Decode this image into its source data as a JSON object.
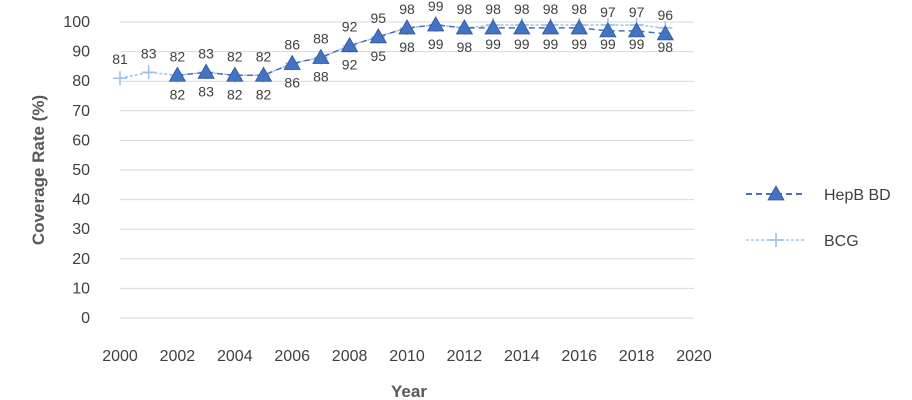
{
  "chart_data": {
    "type": "line",
    "xlabel": "Year",
    "ylabel": "Coverage Rate (%)",
    "xlim": [
      2000,
      2020
    ],
    "ylim": [
      0,
      100
    ],
    "x_ticks": [
      "2000",
      "2002",
      "2004",
      "2006",
      "2008",
      "2010",
      "2012",
      "2014",
      "2016",
      "2018",
      "2020"
    ],
    "y_ticks": [
      "0",
      "10",
      "20",
      "30",
      "40",
      "50",
      "60",
      "70",
      "80",
      "90",
      "100"
    ],
    "grid": true,
    "legend_position": "right",
    "series": [
      {
        "name": "HepB BD",
        "color": "#4472c4",
        "marker": "triangle",
        "line_style": "dashed",
        "x": [
          2002,
          2003,
          2004,
          2005,
          2006,
          2007,
          2008,
          2009,
          2010,
          2011,
          2012,
          2013,
          2014,
          2015,
          2016,
          2017,
          2018,
          2019
        ],
        "values": [
          82,
          83,
          82,
          82,
          86,
          88,
          92,
          95,
          98,
          99,
          98,
          98,
          98,
          98,
          98,
          97,
          97,
          96
        ]
      },
      {
        "name": "BCG",
        "color": "#9dc3e6",
        "marker": "plus",
        "line_style": "dashed",
        "x": [
          2000,
          2001,
          2002,
          2003,
          2004,
          2005,
          2006,
          2007,
          2008,
          2009,
          2010,
          2011,
          2012,
          2013,
          2014,
          2015,
          2016,
          2017,
          2018,
          2019
        ],
        "values": [
          81,
          83,
          82,
          83,
          82,
          82,
          86,
          88,
          92,
          95,
          98,
          99,
          98,
          99,
          99,
          99,
          99,
          99,
          99,
          98
        ]
      }
    ]
  }
}
